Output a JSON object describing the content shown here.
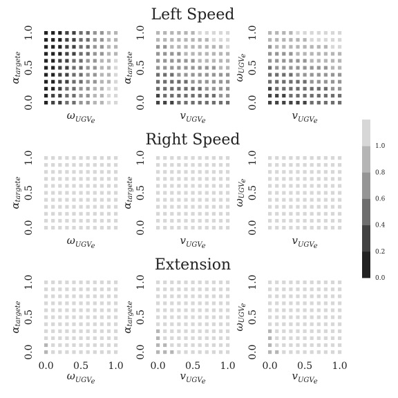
{
  "chart_data": {
    "type": "heatmap",
    "row_titles": [
      "Left Speed",
      "Right Speed",
      "Extension"
    ],
    "columns": [
      {
        "xlabel": "ω",
        "xlabel_sub": "UGV",
        "xlabel_subsub": "e",
        "ylabel": "α",
        "ylabel_sub": "targete"
      },
      {
        "xlabel": "v",
        "xlabel_sub": "UGV",
        "xlabel_subsub": "e",
        "ylabel": "α",
        "ylabel_sub": "targete"
      },
      {
        "xlabel": "v",
        "xlabel_sub": "UGV",
        "xlabel_subsub": "e",
        "ylabel": "ω",
        "ylabel_sub": "UGV",
        "ylabel_subsub": "e"
      }
    ],
    "x_ticks": [
      "0.0",
      "0.5",
      "1.0"
    ],
    "y_ticks": [
      "0.0",
      "0.5",
      "1.0"
    ],
    "grid_size": 11,
    "colorbar": {
      "ticks": [
        "0.0",
        "0.2",
        "0.4",
        "0.6",
        "0.8",
        "1.0"
      ],
      "levels": 6,
      "range": [
        0,
        1
      ]
    },
    "panels": [
      {
        "row": 0,
        "col": 0,
        "pattern": "left_omega_alpha"
      },
      {
        "row": 0,
        "col": 1,
        "pattern": "left_v_alpha"
      },
      {
        "row": 0,
        "col": 2,
        "pattern": "left_v_omega"
      },
      {
        "row": 1,
        "col": 0,
        "pattern": "uniform_high"
      },
      {
        "row": 1,
        "col": 1,
        "pattern": "uniform_high"
      },
      {
        "row": 1,
        "col": 2,
        "pattern": "uniform_high"
      },
      {
        "row": 2,
        "col": 0,
        "pattern": "ext_corner"
      },
      {
        "row": 2,
        "col": 1,
        "pattern": "ext_edge"
      },
      {
        "row": 2,
        "col": 2,
        "pattern": "ext_corner_small"
      }
    ]
  }
}
